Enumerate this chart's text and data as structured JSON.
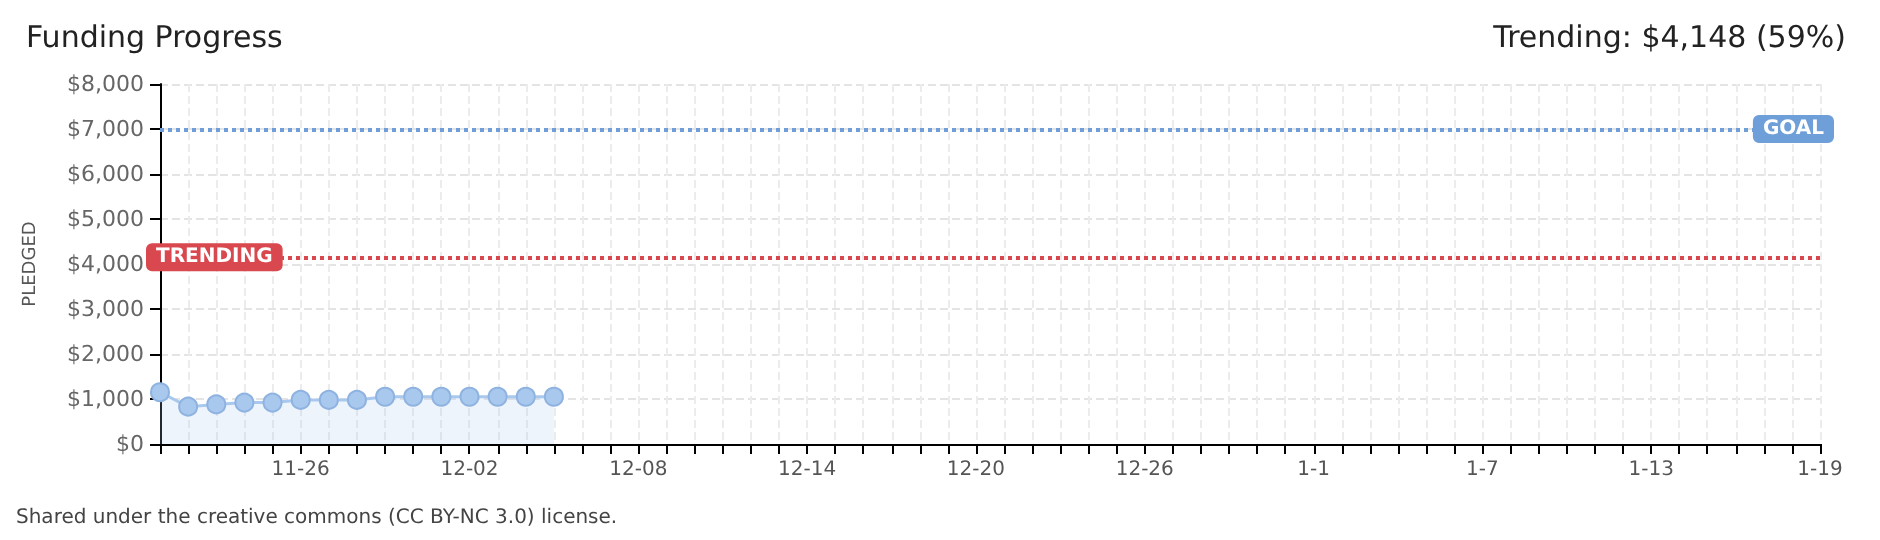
{
  "chart_data": {
    "type": "area",
    "title": "Funding Progress",
    "subtitle": "Trending: $4,148 (59%)",
    "ylabel": "PLEDGED",
    "categories": [
      null,
      null,
      null,
      null,
      null,
      "11-26",
      null,
      null,
      null,
      null,
      null,
      "12-02",
      null,
      null,
      null,
      null,
      null,
      "12-08",
      null,
      null,
      null,
      null,
      null,
      "12-14",
      null,
      null,
      null,
      null,
      null,
      "12-20",
      null,
      null,
      null,
      null,
      null,
      "12-26",
      null,
      null,
      null,
      null,
      null,
      "1-1",
      null,
      null,
      null,
      null,
      null,
      "1-7",
      null,
      null,
      null,
      null,
      null,
      "1-13",
      null,
      null,
      null,
      null,
      null,
      "1-19"
    ],
    "series": [
      {
        "color": "#a9c8ee",
        "values": [
          1150,
          830,
          880,
          920,
          920,
          980,
          980,
          980,
          1050,
          1050,
          1050,
          1050,
          1050,
          1050,
          1050,
          null,
          null,
          null,
          null,
          null,
          null,
          null,
          null,
          null,
          null,
          null,
          null,
          null,
          null,
          null,
          null,
          null,
          null,
          null,
          null,
          null,
          null,
          null,
          null,
          null,
          null,
          null,
          null,
          null,
          null,
          null,
          null,
          null,
          null,
          null,
          null,
          null,
          null,
          null,
          null,
          null,
          null,
          null,
          null,
          null
        ]
      }
    ],
    "ylim": [
      0,
      8000
    ],
    "yticks": [
      {
        "value": 0,
        "label": "$0"
      },
      {
        "value": 1000,
        "label": "$1,000"
      },
      {
        "value": 2000,
        "label": "$2,000"
      },
      {
        "value": 3000,
        "label": "$3,000"
      },
      {
        "value": 4000,
        "label": "$4,000"
      },
      {
        "value": 5000,
        "label": "$5,000"
      },
      {
        "value": 6000,
        "label": "$6,000"
      },
      {
        "value": 7000,
        "label": "$7,000"
      },
      {
        "value": 8000,
        "label": "$8,000"
      }
    ],
    "ref_lines": [
      {
        "axis": "y",
        "value": 7000,
        "label": "GOAL",
        "color": "#6f9fd8",
        "line_style": "dotted"
      },
      {
        "axis": "y",
        "value": 4148,
        "label": "TRENDING",
        "color": "#d9484e",
        "line_style": "dotted"
      }
    ],
    "annotations": [
      "Shared under the creative commons (CC BY-NC 3.0) license."
    ],
    "grid": true,
    "marker": "circle"
  }
}
